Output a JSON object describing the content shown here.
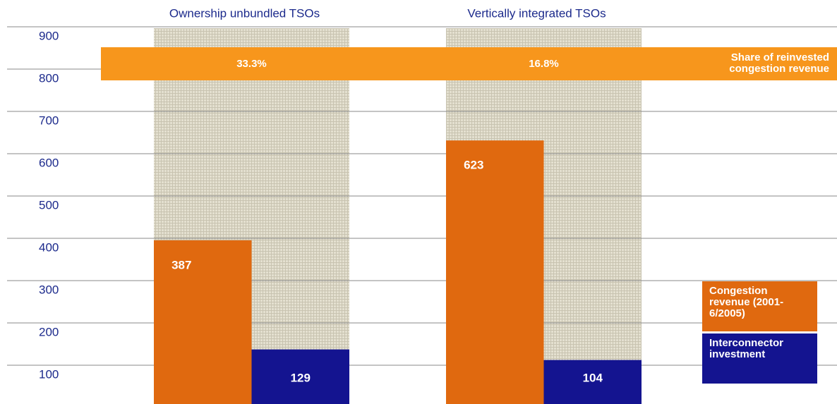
{
  "chart_data": {
    "type": "bar",
    "categories": [
      "Ownership unbundled TSOs",
      "Vertically integrated TSOs"
    ],
    "series": [
      {
        "name": "Congestion revenue (2001-6/2005)",
        "color": "#e0690f",
        "values": [
          387,
          623
        ]
      },
      {
        "name": "Interconnector investment",
        "color": "#141490",
        "values": [
          129,
          104
        ]
      }
    ],
    "reinvested_share": {
      "label": "Share of reinvested congestion revenue",
      "color": "#f7961c",
      "values": [
        33.3,
        16.8
      ],
      "value_labels": [
        "33.3%",
        "16.8%"
      ]
    },
    "ylim": [
      0,
      950
    ],
    "yticks": [
      100,
      200,
      300,
      400,
      500,
      600,
      700,
      800,
      900
    ],
    "grid": true,
    "legend": "right"
  }
}
